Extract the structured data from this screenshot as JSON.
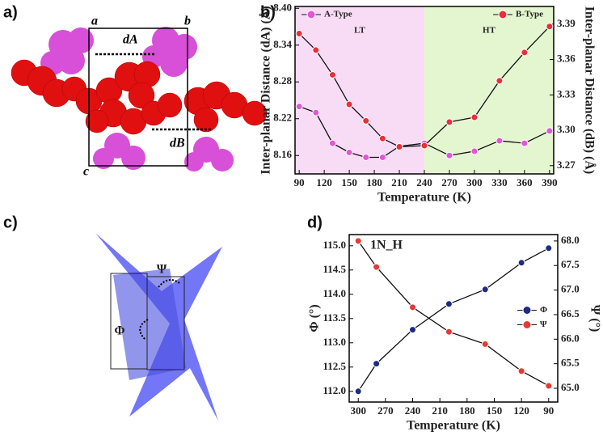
{
  "panels": {
    "labels": [
      "a)",
      "b)",
      "c)",
      "d)"
    ],
    "a": {
      "corners": [
        "a",
        "b",
        "c"
      ],
      "distances": [
        "dA",
        "dB"
      ]
    },
    "c": {
      "angles": [
        "Φ",
        "Ψ"
      ]
    }
  },
  "chart_data": [
    {
      "type": "line",
      "x_label": "Temperature (K)",
      "y_label": "Inter-planar Distance (dA) (Å)",
      "y2_label": "Inter-planar Distance (dB) (Å)",
      "x": [
        90,
        110,
        130,
        150,
        170,
        190,
        210,
        240,
        270,
        300,
        330,
        360,
        390
      ],
      "series": [
        {
          "name": "A-Type",
          "color": "#e455d8",
          "values": [
            8.24,
            8.23,
            8.18,
            8.165,
            8.157,
            8.157,
            8.175,
            8.18,
            8.16,
            8.167,
            8.184,
            8.18,
            8.2
          ]
        },
        {
          "name": "B-Type",
          "color": "#e8303a",
          "axis": "y2",
          "values": [
            3.382,
            3.368,
            3.347,
            3.322,
            3.308,
            3.293,
            3.286,
            3.287,
            3.307,
            3.311,
            3.342,
            3.366,
            3.388
          ]
        }
      ],
      "regions": [
        {
          "label": "LT",
          "from": 85,
          "to": 240,
          "color": "#f8dcf6"
        },
        {
          "label": "HT",
          "from": 240,
          "to": 395,
          "color": "#e4f6d0"
        }
      ],
      "xlim": [
        85,
        395
      ],
      "xticks": [
        90,
        120,
        150,
        180,
        210,
        240,
        270,
        300,
        330,
        360,
        390
      ],
      "ylim": [
        8.13,
        8.403
      ],
      "yticks": [
        8.16,
        8.22,
        8.28,
        8.34,
        {
          "value": 8.4,
          "label": "8.40"
        }
      ],
      "y2lim": [
        3.263,
        3.405
      ],
      "y2ticks": [
        3.27,
        {
          "value": 3.3,
          "label": "3.30"
        },
        3.33,
        3.36,
        3.39
      ],
      "legend": "top"
    },
    {
      "type": "line",
      "x_label": "Temperature (K)",
      "y_label": "Φ (°)",
      "y2_label": "Ψ (°)",
      "annotation": "1N_H",
      "x": [
        300,
        280,
        240,
        200,
        160,
        120,
        90
      ],
      "series": [
        {
          "name": "Φ",
          "color": "#1f2a80",
          "values": [
            112.0,
            112.57,
            113.27,
            113.8,
            114.1,
            114.65,
            114.95
          ]
        },
        {
          "name": "Ψ",
          "color": "#e53935",
          "axis": "y2",
          "values": [
            68.0,
            67.47,
            66.65,
            66.15,
            65.9,
            65.35,
            65.05
          ]
        }
      ],
      "xlim": [
        310,
        80
      ],
      "xticks": [
        300,
        270,
        240,
        210,
        180,
        150,
        120,
        90
      ],
      "ylim": [
        111.78,
        115.23
      ],
      "yticks": [
        {
          "value": 112,
          "label": "112.0"
        },
        112.5,
        {
          "value": 113,
          "label": "113.0"
        },
        113.5,
        {
          "value": 114,
          "label": "114.0"
        },
        114.5,
        {
          "value": 115,
          "label": "115.0"
        }
      ],
      "y2lim": [
        64.72,
        68.13
      ],
      "y2ticks": [
        {
          "value": 65,
          "label": "65.0"
        },
        65.5,
        {
          "value": 66,
          "label": "66.0"
        },
        66.5,
        {
          "value": 67,
          "label": "67.0"
        },
        67.5,
        {
          "value": 68,
          "label": "68.0"
        }
      ],
      "legend": "right"
    }
  ]
}
